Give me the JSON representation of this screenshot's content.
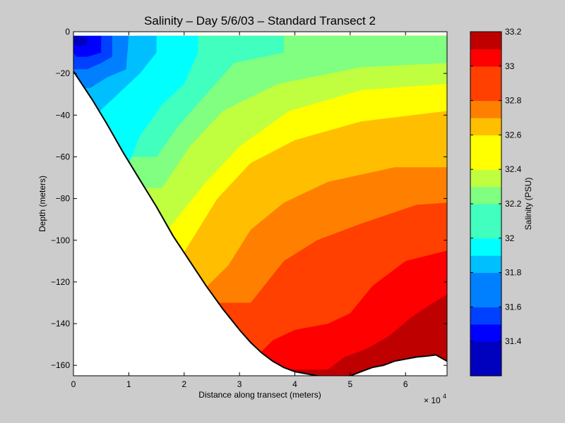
{
  "chart_data": {
    "type": "heatmap",
    "title": "Salinity – Day 5/6/03 – Standard Transect 2",
    "xlabel": "Distance along transect (meters)",
    "ylabel": "Depth (meters)",
    "x_scale_label": "× 10",
    "x_scale_exponent": "4",
    "xlim": [
      0,
      67500
    ],
    "ylim": [
      -165,
      0
    ],
    "x_ticks": [
      "0",
      "1",
      "2",
      "3",
      "4",
      "5",
      "6"
    ],
    "y_ticks": [
      "0",
      "−20",
      "−40",
      "−60",
      "−80",
      "−100",
      "−120",
      "−140",
      "−160"
    ],
    "colorbar": {
      "label": "Salinity (PSU)",
      "range": [
        31.2,
        33.2
      ],
      "ticks": [
        "31.4",
        "31.6",
        "31.8",
        "32",
        "32.2",
        "32.4",
        "32.6",
        "32.8",
        "33",
        "33.2"
      ],
      "levels": [
        31.2,
        31.3,
        31.4,
        31.5,
        31.6,
        31.7,
        31.8,
        31.9,
        32.0,
        32.1,
        32.2,
        32.3,
        32.4,
        32.5,
        32.6,
        32.7,
        32.8,
        32.9,
        33.0,
        33.1,
        33.2
      ],
      "colors": [
        "#0000bf",
        "#0000ff",
        "#0040ff",
        "#0080ff",
        "#00bfff",
        "#00ffff",
        "#40ffbf",
        "#80ff80",
        "#bfff40",
        "#ffff00",
        "#ffbf00",
        "#ff8000",
        "#ff4000",
        "#ff0000",
        "#bf0000"
      ]
    },
    "contour_bands": [
      {
        "from": 31.4,
        "to": 31.5,
        "color": "#0000bf",
        "x": [
          0,
          1000,
          2500,
          2500,
          1000,
          0
        ],
        "depth": [
          -2,
          -2,
          -3,
          -6,
          -7,
          -6
        ]
      },
      {
        "from": 31.5,
        "to": 31.6,
        "color": "#0000ff",
        "x": [
          0,
          2500,
          5000,
          5000,
          2500,
          500,
          0
        ],
        "depth": [
          -2,
          -2,
          -2,
          -10,
          -12,
          -12,
          -10
        ]
      },
      {
        "from": 31.6,
        "to": 31.7,
        "color": "#0040ff",
        "x": [
          0,
          5000,
          7000,
          7000,
          5000,
          2500,
          0
        ],
        "depth": [
          -2,
          -2,
          -2,
          -12,
          -15,
          -18,
          -18
        ]
      },
      {
        "from": 31.7,
        "to": 31.8,
        "color": "#0080ff",
        "x": [
          0,
          7000,
          10000,
          9500,
          6000,
          3000,
          0
        ],
        "depth": [
          -2,
          -2,
          -2,
          -18,
          -22,
          -27,
          -27
        ]
      },
      {
        "from": 31.8,
        "to": 31.9,
        "color": "#00bfff",
        "x": [
          0,
          10000,
          15000,
          15000,
          12000,
          8000,
          4000,
          0
        ],
        "depth": [
          -2,
          -2,
          -2,
          -10,
          -20,
          -30,
          -40,
          -40
        ]
      },
      {
        "from": 31.9,
        "to": 32.0,
        "color": "#00ffff",
        "x": [
          0,
          15000,
          22500,
          22500,
          20000,
          16000,
          12000,
          9000,
          0
        ],
        "depth": [
          -2,
          -2,
          -2,
          -10,
          -25,
          -35,
          -50,
          -70,
          -70
        ]
      },
      {
        "from": 32.0,
        "to": 32.1,
        "color": "#40ffbf",
        "x": [
          0,
          22500,
          38000,
          38000,
          29000,
          24000,
          19000,
          15000,
          0
        ],
        "depth": [
          -2,
          -2,
          -2,
          -10,
          -15,
          -30,
          -45,
          -60,
          -60
        ]
      },
      {
        "from": 32.1,
        "to": 32.2,
        "color": "#80ff80",
        "x": [
          0,
          38000,
          67500,
          67500,
          52000,
          37000,
          27000,
          21000,
          16000,
          0
        ],
        "depth": [
          -2,
          -2,
          -2,
          -15,
          -17,
          -25,
          -38,
          -55,
          -75,
          -75
        ]
      },
      {
        "from": 32.2,
        "to": 32.3,
        "color": "#bfff40",
        "x": [
          0,
          67500,
          67500,
          52000,
          39000,
          30000,
          24000,
          17000,
          0
        ],
        "depth": [
          -2,
          -2,
          -25,
          -28,
          -38,
          -55,
          -72,
          -95,
          -95
        ]
      },
      {
        "from": 32.3,
        "to": 32.4,
        "color": "#ffff00",
        "x": [
          0,
          67500,
          67500,
          52000,
          40000,
          32000,
          26000,
          19000,
          0
        ],
        "depth": [
          -2,
          -2,
          -38,
          -43,
          -52,
          -63,
          -80,
          -110,
          -110
        ]
      },
      {
        "from": 32.4,
        "to": 32.5,
        "color": "#ffbf00",
        "x": [
          0,
          67500,
          67500,
          58000,
          46000,
          38000,
          32000,
          28000,
          23000,
          0
        ],
        "depth": [
          -2,
          -2,
          -65,
          -65,
          -72,
          -82,
          -95,
          -112,
          -125,
          -125
        ]
      },
      {
        "from": 32.5,
        "to": 32.6,
        "color": "#ff8000",
        "x": [
          0,
          67500,
          67500,
          62000,
          52000,
          44000,
          38000,
          32000,
          0
        ],
        "depth": [
          -2,
          -2,
          -82,
          -83,
          -92,
          -100,
          -110,
          -130,
          -130
        ]
      },
      {
        "from": 32.6,
        "to": 32.7,
        "color": "#ff4000",
        "x": [
          0,
          67500,
          67500,
          60000,
          54000,
          50000,
          46000,
          40000,
          36000,
          31500,
          0
        ],
        "depth": [
          -2,
          -2,
          -105,
          -110,
          -122,
          -135,
          -140,
          -143,
          -148,
          -160,
          -160
        ]
      },
      {
        "from": 32.7,
        "to": 32.8,
        "color": "#ff0000",
        "x": [
          0,
          67500,
          67500,
          65000,
          61000,
          57000,
          53000,
          49000,
          46000,
          0
        ],
        "depth": [
          -2,
          -2,
          -126,
          -130,
          -137,
          -146,
          -152,
          -156,
          -162,
          -162
        ]
      },
      {
        "from": 32.8,
        "to": 32.9,
        "color": "#bf0000",
        "x": [
          0,
          67500,
          67500,
          0
        ],
        "depth": [
          -2,
          -2,
          -170,
          -170
        ]
      }
    ],
    "seafloor": {
      "x": [
        0,
        1500,
        3500,
        6000,
        9000,
        12000,
        15000,
        18000,
        21000,
        24000,
        27000,
        30000,
        32000,
        34000,
        36000,
        38000,
        40000,
        42000,
        44000,
        46000,
        48000,
        50000,
        52000,
        54000,
        56000,
        58000,
        60000,
        62000,
        64000,
        65500,
        67500
      ],
      "depth": [
        -19,
        -25,
        -33,
        -44,
        -58,
        -71,
        -84,
        -98,
        -110,
        -122,
        -133,
        -143,
        -149,
        -154,
        -158,
        -161,
        -163,
        -164,
        -165,
        -166,
        -166,
        -165,
        -163,
        -161,
        -160,
        -158,
        -157,
        -156,
        -155.5,
        -155,
        -158
      ]
    }
  }
}
